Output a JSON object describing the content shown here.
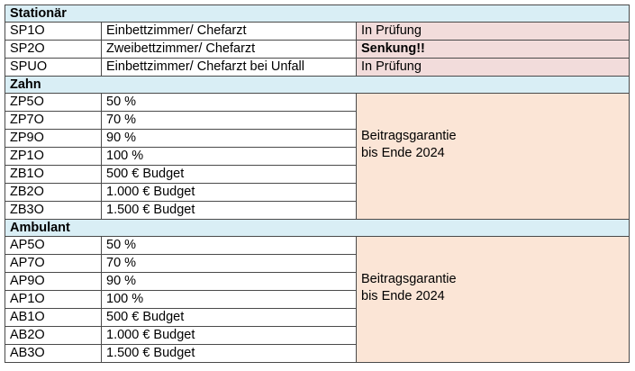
{
  "sections": {
    "stationaer": {
      "title": "Stationär",
      "rows": [
        {
          "code": "SP1O",
          "desc": "Einbettzimmer/ Chefarzt",
          "status": "In Prüfung"
        },
        {
          "code": "SP2O",
          "desc": "Zweibettzimmer/ Chefarzt",
          "status": "Senkung!!"
        },
        {
          "code": "SPUO",
          "desc": "Einbettzimmer/ Chefarzt bei Unfall",
          "status": "In Prüfung"
        }
      ]
    },
    "zahn": {
      "title": "Zahn",
      "rows": [
        {
          "code": "ZP5O",
          "desc": "50 %"
        },
        {
          "code": "ZP7O",
          "desc": "70 %"
        },
        {
          "code": "ZP9O",
          "desc": "90 %"
        },
        {
          "code": "ZP1O",
          "desc": "100 %"
        },
        {
          "code": "ZB1O",
          "desc": "500 € Budget"
        },
        {
          "code": "ZB2O",
          "desc": "1.000 € Budget"
        },
        {
          "code": "ZB3O",
          "desc": "1.500 € Budget"
        }
      ],
      "note_line1": "Beitragsgarantie",
      "note_line2": "bis Ende 2024"
    },
    "ambulant": {
      "title": "Ambulant",
      "rows": [
        {
          "code": "AP5O",
          "desc": "50 %"
        },
        {
          "code": "AP7O",
          "desc": "70 %"
        },
        {
          "code": "AP9O",
          "desc": "90 %"
        },
        {
          "code": "AP1O",
          "desc": "100 %"
        },
        {
          "code": "AB1O",
          "desc": "500 € Budget"
        },
        {
          "code": "AB2O",
          "desc": "1.000 € Budget"
        },
        {
          "code": "AB3O",
          "desc": "1.500 € Budget"
        }
      ],
      "note_line1": "Beitragsgarantie",
      "note_line2": "bis Ende 2024"
    }
  },
  "colors": {
    "section_header_bg": "#d9eef5",
    "status_bg": "#f2dcdb",
    "guarantee_bg": "#fbe5d6",
    "border": "#4a4a4a"
  }
}
